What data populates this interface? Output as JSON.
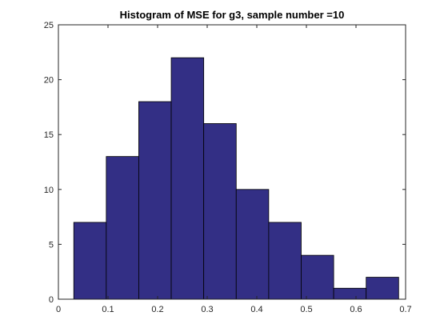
{
  "chart_data": {
    "type": "bar",
    "title": "Histogram of MSE for g3, sample number =10",
    "xlabel": "",
    "ylabel": "",
    "bin_edges": [
      0.031,
      0.0965,
      0.162,
      0.2275,
      0.293,
      0.3585,
      0.424,
      0.4895,
      0.555,
      0.6205,
      0.686
    ],
    "values": [
      7,
      13,
      18,
      22,
      16,
      10,
      7,
      4,
      1,
      2
    ],
    "xlim": [
      0,
      0.7
    ],
    "ylim": [
      0,
      25
    ],
    "xticks": [
      0,
      0.1,
      0.2,
      0.3,
      0.4,
      0.5,
      0.6,
      0.7
    ],
    "xtick_labels": [
      "0",
      "0.1",
      "0.2",
      "0.3",
      "0.4",
      "0.5",
      "0.6",
      "0.7"
    ],
    "yticks": [
      0,
      5,
      10,
      15,
      20,
      25
    ],
    "ytick_labels": [
      "0",
      "5",
      "10",
      "15",
      "20",
      "25"
    ],
    "grid": false,
    "bar_color": "#332f85",
    "edge_color": "#000000"
  }
}
